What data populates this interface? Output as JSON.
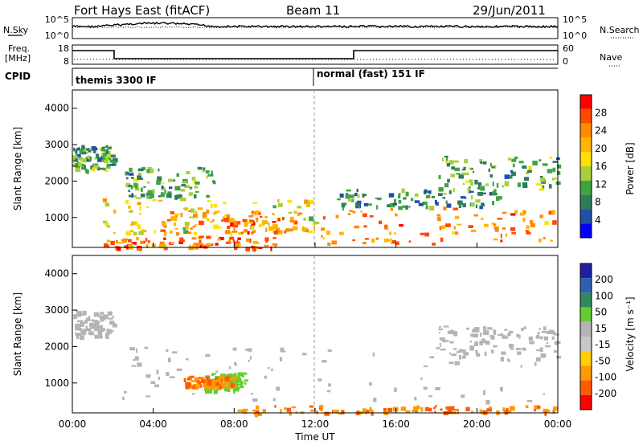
{
  "header": {
    "station": "Fort Hays East (fitACF)",
    "beam": "Beam 11",
    "date": "29/Jun/2011"
  },
  "panels": {
    "nsky_label": "N.Sky",
    "nsky_ticks": [
      "10^5",
      "10^0"
    ],
    "nsearch_label": "N.Search",
    "nsearch_ticks": [
      "10^5",
      "10^0"
    ],
    "freq_label_1": "Freq.",
    "freq_label_2": "[MHz]",
    "freq_ticks": [
      "18",
      "8"
    ],
    "nave_label": "Nave",
    "nave_ticks": [
      "60",
      "0"
    ],
    "cpid_label": "CPID",
    "cpid_1": "themis 3300 IF",
    "cpid_2": "normal (fast) 151 IF"
  },
  "power_colorbar": {
    "title": "Power [dB]",
    "ticks": [
      "28",
      "24",
      "20",
      "16",
      "12",
      "8",
      "4"
    ],
    "colors": [
      "#ff0000",
      "#ff4a00",
      "#ff8c00",
      "#ffb400",
      "#ffe000",
      "#a8cf3c",
      "#3fa43f",
      "#2e7d5a",
      "#1f4fa8",
      "#0000ff"
    ]
  },
  "velocity_colorbar": {
    "title": "Velocity [m s⁻¹]",
    "ticks": [
      "200",
      "100",
      "50",
      "15",
      "-15",
      "-50",
      "-100",
      "-200"
    ],
    "colors": [
      "#1f1fa0",
      "#2e5fb0",
      "#2f8a60",
      "#66cc33",
      "#b4b4b4",
      "#c8c8c8",
      "#ffd000",
      "#ff9a00",
      "#ff5a00",
      "#ff0000"
    ]
  },
  "chart_data": [
    {
      "type": "heatmap",
      "ylabel": "Slant Range [km]",
      "yticks": [
        "4000",
        "3000",
        "2000",
        "1000"
      ],
      "xticks": [
        "00:00",
        "04:00",
        "08:00",
        "12:00",
        "16:00",
        "20:00",
        "00:00"
      ],
      "ylim": [
        180,
        4500
      ],
      "xlim": [
        0,
        24
      ],
      "colorbar": "Power [dB]",
      "regions": [
        {
          "t0": 0.0,
          "t1": 2.0,
          "r0": 2300,
          "r1": 3000,
          "level": 12
        },
        {
          "t0": 2.5,
          "t1": 7.0,
          "r0": 1600,
          "r1": 2400,
          "level": 12
        },
        {
          "t0": 1.5,
          "t1": 12.0,
          "r0": 600,
          "r1": 1600,
          "level": 18
        },
        {
          "t0": 4.0,
          "t1": 11.5,
          "r0": 600,
          "r1": 1200,
          "level": 24
        },
        {
          "t0": 12.0,
          "t1": 24.0,
          "r0": 300,
          "r1": 1300,
          "level": 24
        },
        {
          "t0": 13.0,
          "t1": 21.0,
          "r0": 1300,
          "r1": 1800,
          "level": 10
        },
        {
          "t0": 18.0,
          "t1": 24.0,
          "r0": 1800,
          "r1": 2700,
          "level": 12
        },
        {
          "t0": 1.5,
          "t1": 10.0,
          "r0": 180,
          "r1": 500,
          "level": 26
        }
      ]
    },
    {
      "type": "heatmap",
      "ylabel": "Slant Range [km]",
      "yticks": [
        "4000",
        "3000",
        "2000",
        "1000"
      ],
      "xticks": [
        "00:00",
        "04:00",
        "08:00",
        "12:00",
        "16:00",
        "20:00",
        "00:00"
      ],
      "xlabel": "Time UT",
      "ylim": [
        180,
        4500
      ],
      "xlim": [
        0,
        24
      ],
      "colorbar": "Velocity [m s⁻¹]",
      "regions": [
        {
          "t0": 0.0,
          "t1": 2.0,
          "r0": 2300,
          "r1": 3000,
          "velocity": 0
        },
        {
          "t0": 2.0,
          "t1": 24.0,
          "r0": 500,
          "r1": 2000,
          "velocity": 0
        },
        {
          "t0": 6.5,
          "t1": 8.5,
          "r0": 800,
          "r1": 1300,
          "velocity": 60
        },
        {
          "t0": 5.5,
          "t1": 8.0,
          "r0": 900,
          "r1": 1200,
          "velocity": -60
        },
        {
          "t0": 8.0,
          "t1": 24.0,
          "r0": 180,
          "r1": 400,
          "velocity": -60
        },
        {
          "t0": 18.0,
          "t1": 24.0,
          "r0": 1800,
          "r1": 2600,
          "velocity": 0
        }
      ]
    }
  ]
}
